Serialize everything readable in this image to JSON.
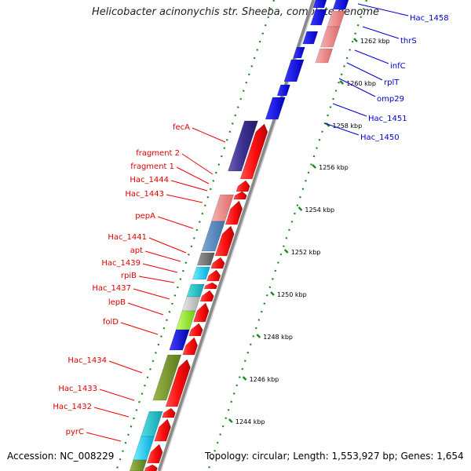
{
  "title": "Helicobacter acinonychis str. Sheeba, complete genome",
  "accession": "Accession: NC_008229",
  "summary": "Topology: circular; Length: 1,553,927 bp; Genes: 1,654",
  "colors": {
    "left_label": "#dd0000",
    "right_label": "#0000cc",
    "cds_forward": "#ff0000",
    "cds_reverse": "#0000ff",
    "backbone": "#888888",
    "gc_dots": "#1a8a1a"
  },
  "scale_ticks": [
    "1244 kbp",
    "1246 kbp",
    "1248 kbp",
    "1250 kbp",
    "1252 kbp",
    "1254 kbp",
    "1256 kbp",
    "1258 kbp",
    "1260 kbp",
    "1262 kbp"
  ],
  "left_labels": [
    "fecA",
    "fragment 2",
    "fragment 1",
    "Hac_1444",
    "Hac_1443",
    "pepA",
    "Hac_1441",
    "apt",
    "Hac_1439",
    "rpiB",
    "Hac_1437",
    "lepB",
    "folD",
    "Hac_1434",
    "Hac_1433",
    "Hac_1432",
    "pyrC"
  ],
  "right_labels": [
    "Hac_1458",
    "thrS",
    "infC",
    "rplT",
    "omp29",
    "Hac_1451",
    "Hac_1450"
  ]
}
